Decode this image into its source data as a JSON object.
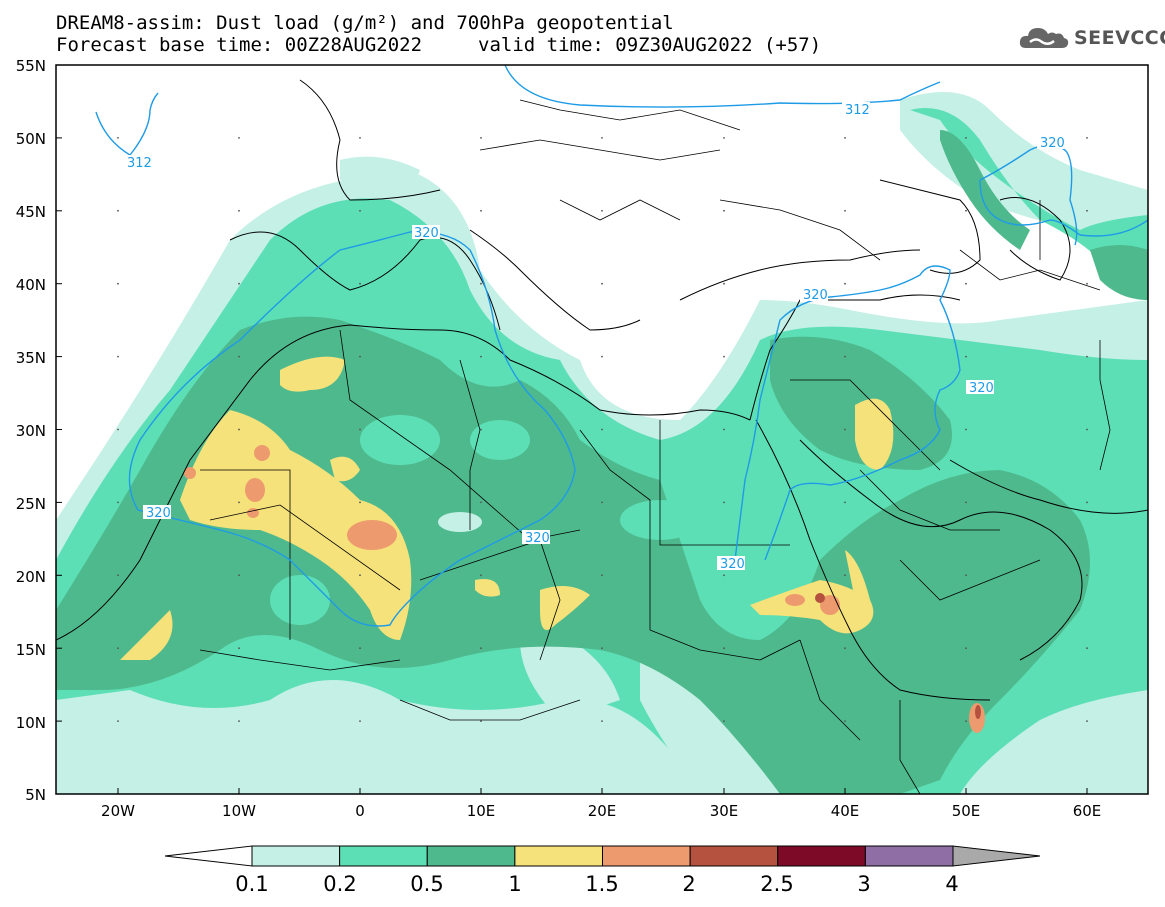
{
  "header": {
    "title_line1": "DREAM8-assim: Dust load (g/m²) and 700hPa geopotential",
    "title_line2": "Forecast base time: 00Z28AUG2022",
    "valid_time": "valid time: 09Z30AUG2022 (+57)"
  },
  "logo": {
    "text": "SEEVCCC",
    "icon": "cloud-icon"
  },
  "map": {
    "lat_labels": [
      "55N",
      "50N",
      "45N",
      "40N",
      "35N",
      "30N",
      "25N",
      "20N",
      "15N",
      "10N",
      "5N"
    ],
    "lon_labels": [
      "20W",
      "10W",
      "0",
      "10E",
      "20E",
      "30E",
      "40E",
      "50E",
      "60E"
    ],
    "contour_labels": [
      "312",
      "312",
      "320",
      "320",
      "320",
      "320",
      "320",
      "320"
    ]
  },
  "colorbar": {
    "labels": [
      "0.1",
      "0.2",
      "0.5",
      "1",
      "1.5",
      "2",
      "2.5",
      "3",
      "4"
    ],
    "colors": [
      "#c5f0e6",
      "#5ddfb6",
      "#4fb98e",
      "#f5e27a",
      "#ed9b6e",
      "#b5523f",
      "#7d0b28",
      "#8e6ea4",
      "#a9a9a9"
    ]
  }
}
